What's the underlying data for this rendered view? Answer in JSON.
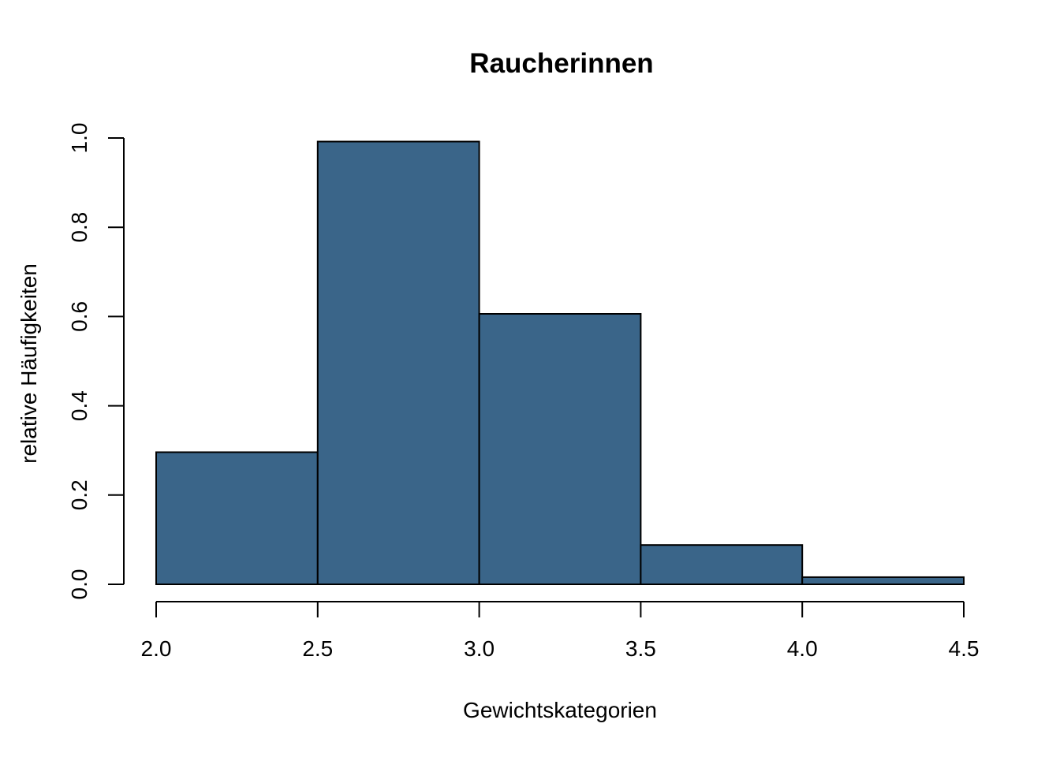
{
  "chart_data": {
    "type": "bar",
    "title": "Raucherinnen",
    "xlabel": "Gewichtskategorien",
    "ylabel": "relative Häufigkeiten",
    "bins": [
      {
        "from": 2.0,
        "to": 2.5,
        "value": 0.296
      },
      {
        "from": 2.5,
        "to": 3.0,
        "value": 0.992
      },
      {
        "from": 3.0,
        "to": 3.5,
        "value": 0.606
      },
      {
        "from": 3.5,
        "to": 4.0,
        "value": 0.088
      },
      {
        "from": 4.0,
        "to": 4.5,
        "value": 0.016
      }
    ],
    "xlim": [
      2.0,
      4.5
    ],
    "ylim": [
      0.0,
      1.0
    ],
    "xticks": [
      "2.0",
      "2.5",
      "3.0",
      "3.5",
      "4.0",
      "4.5"
    ],
    "yticks": [
      "0.0",
      "0.2",
      "0.4",
      "0.6",
      "0.8",
      "1.0"
    ],
    "bar_color": "#3a6589",
    "grid": false
  }
}
